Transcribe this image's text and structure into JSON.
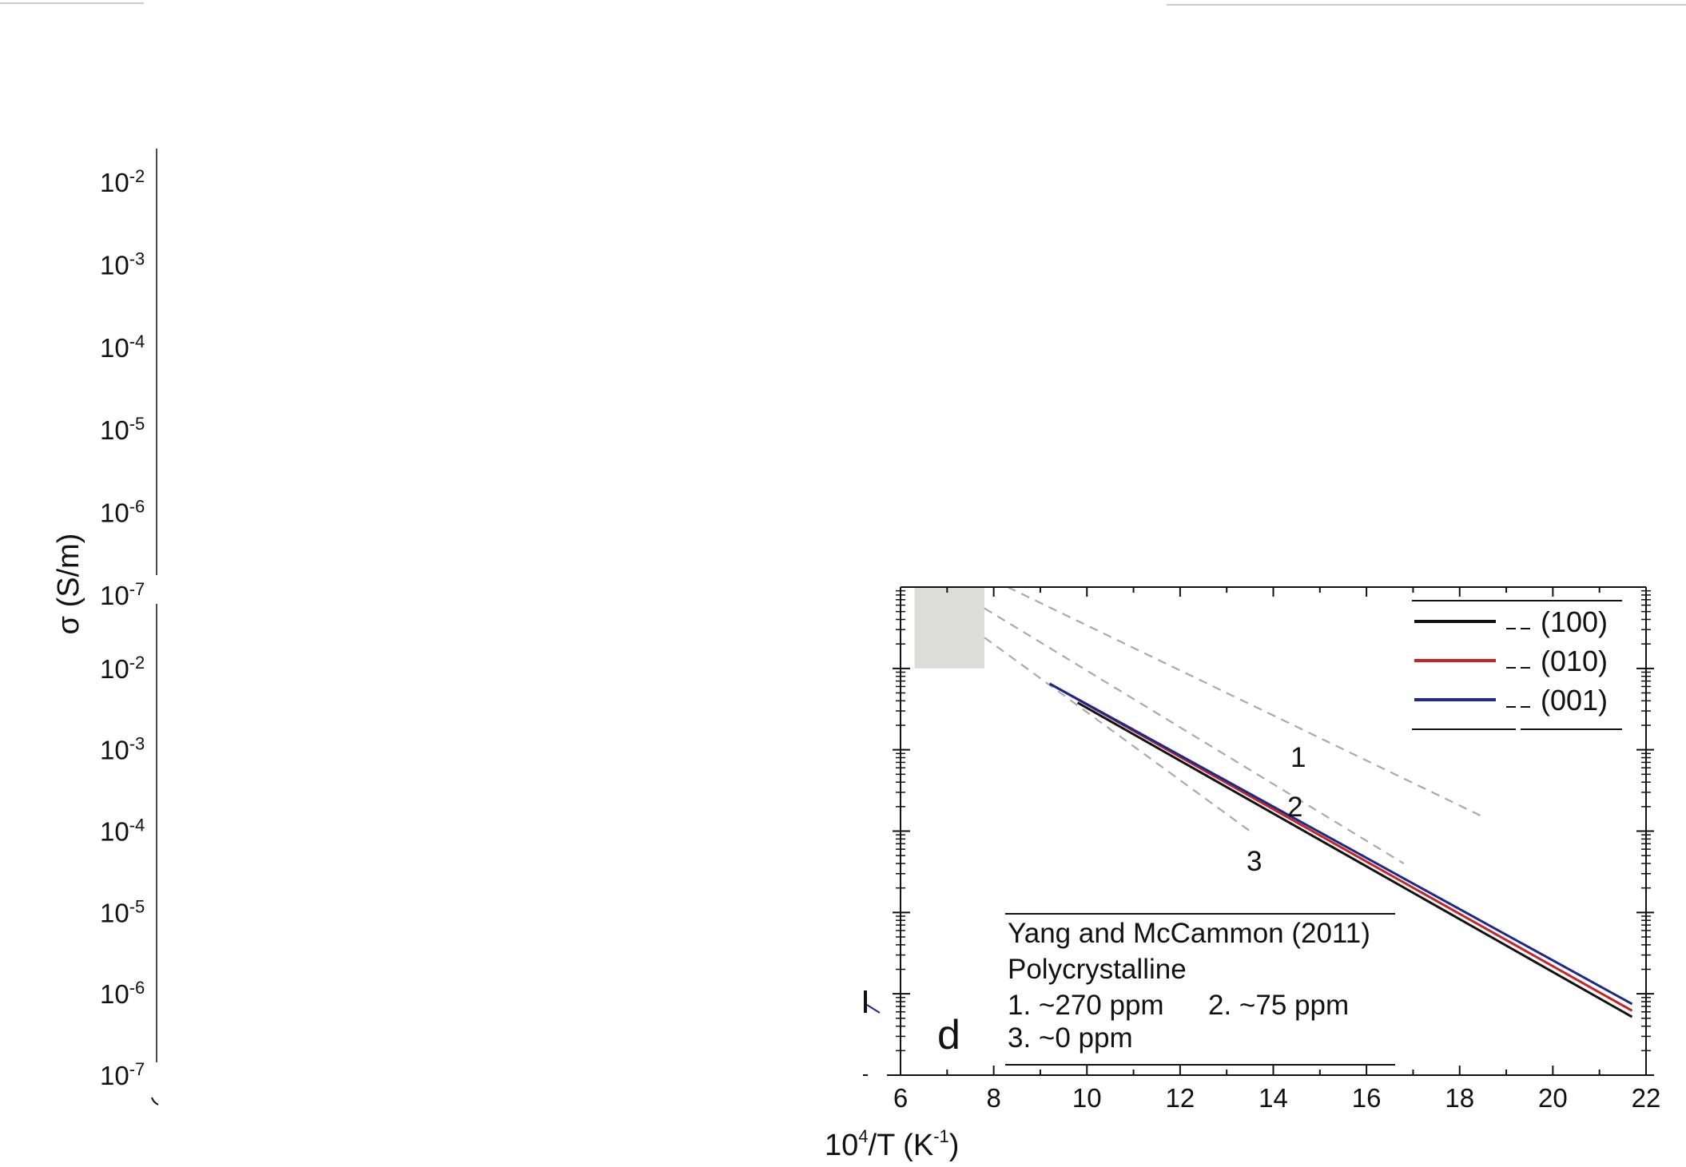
{
  "chart_data": {
    "type": "line",
    "panel_label": "d",
    "xlabel": "10^4/T (K^-1)",
    "xlabel_parts": {
      "base": "10",
      "exp": "4",
      "mid": "/T (K",
      "unit_exp": "-1",
      "close": ")"
    },
    "ylabel": "σ (S/m)",
    "xlim": [
      6,
      22
    ],
    "ylim": [
      1e-07,
      0.1
    ],
    "y_scale": "log",
    "x_tick_labels": [
      "6",
      "8",
      "10",
      "12",
      "14",
      "16",
      "18",
      "20",
      "22"
    ],
    "x_tick_values": [
      6,
      8,
      10,
      12,
      14,
      16,
      18,
      20,
      22
    ],
    "y_tick_labels": [
      {
        "base": "10",
        "exp": "-2",
        "value": 0.01
      },
      {
        "base": "10",
        "exp": "-3",
        "value": 0.001
      },
      {
        "base": "10",
        "exp": "-4",
        "value": 0.0001
      },
      {
        "base": "10",
        "exp": "-5",
        "value": 1e-05
      },
      {
        "base": "10",
        "exp": "-6",
        "value": 1e-06
      },
      {
        "base": "10",
        "exp": "-7",
        "value": 1e-07
      }
    ],
    "upper_panel_y_tick_labels": [
      {
        "base": "10",
        "exp": "-2"
      },
      {
        "base": "10",
        "exp": "-3"
      },
      {
        "base": "10",
        "exp": "-4"
      },
      {
        "base": "10",
        "exp": "-5"
      },
      {
        "base": "10",
        "exp": "-6"
      },
      {
        "base": "10",
        "exp": "-7"
      }
    ],
    "series": [
      {
        "name": "(100)",
        "color": "#111111",
        "style": "solid",
        "x": [
          9.8,
          21.7
        ],
        "y": [
          0.0038,
          5.2e-07
        ]
      },
      {
        "name": "(010)",
        "color": "#cc2222",
        "style": "solid",
        "x": [
          9.2,
          21.7
        ],
        "y": [
          0.0065,
          6.2e-07
        ]
      },
      {
        "name": "(001)",
        "color": "#1a2a8c",
        "style": "solid",
        "x": [
          9.2,
          21.7
        ],
        "y": [
          0.0065,
          7.5e-07
        ]
      }
    ],
    "reference_lines": [
      {
        "label": "1",
        "color": "#aaaaaa",
        "style": "dashed",
        "x": [
          8.3,
          18.5
        ],
        "y": [
          0.1,
          0.00015
        ]
      },
      {
        "label": "2",
        "color": "#aaaaaa",
        "style": "dashed",
        "x": [
          7.8,
          16.8
        ],
        "y": [
          0.055,
          4e-05
        ]
      },
      {
        "label": "3",
        "color": "#aaaaaa",
        "style": "dashed",
        "x": [
          7.8,
          13.5
        ],
        "y": [
          0.024,
          0.0001
        ]
      }
    ],
    "shaded_region": {
      "x": [
        6.3,
        7.8
      ],
      "y": [
        0.01,
        0.1
      ],
      "color": "#dcdcda"
    },
    "legend": {
      "placement": "top-right",
      "entries": [
        {
          "label": "(100)",
          "color": "#111111"
        },
        {
          "label": "(010)",
          "color": "#cc2222"
        },
        {
          "label": "(001)",
          "color": "#1a2a8c"
        }
      ]
    },
    "annotation_lines": [
      "Yang and McCammon (2011)",
      "Polycrystalline",
      "1. ~270 ppm",
      "2. ~75 ppm",
      "3. ~0 ppm"
    ]
  }
}
